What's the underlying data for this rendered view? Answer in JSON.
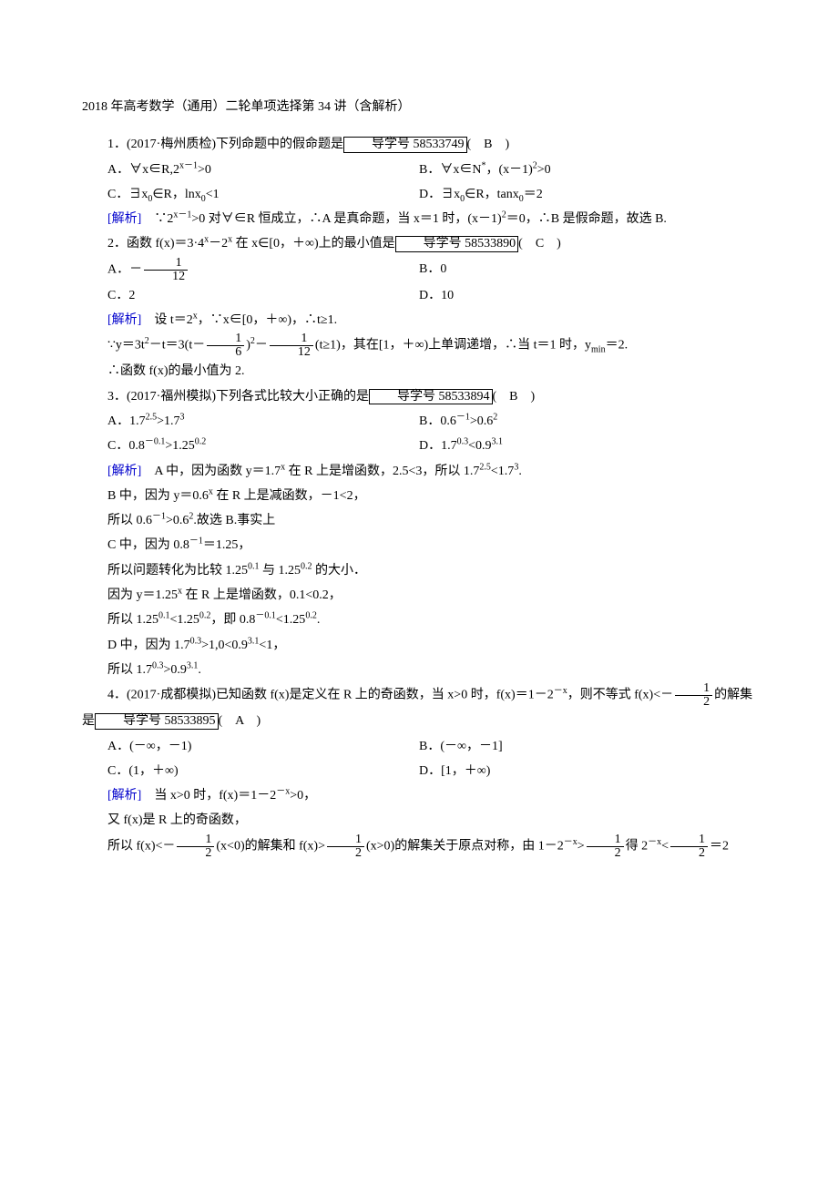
{
  "title": "2018 年高考数学（通用）二轮单项选择第 34 讲（含解析）",
  "q1": {
    "stem_a": "1．(2017·梅州质检)下列命题中的假命题是",
    "box": "导学号 58533749",
    "stem_b": "(　B　)",
    "A": "A．∀x∈R,2",
    "A_sup": "x－1",
    "A_tail": ">0",
    "B": "B．∀x∈N",
    "B_sup1": "*",
    "B_mid": "，(x－1)",
    "B_sup2": "2",
    "B_tail": ">0",
    "C_a": "C．∃x",
    "C_sub": "0",
    "C_b": "∈R，lnx",
    "C_sub2": "0",
    "C_tail": "<1",
    "D_a": "D．∃x",
    "D_sub": "0",
    "D_b": "∈R，tanx",
    "D_sub2": "0",
    "D_tail": "＝2",
    "ana_label": "[解析]",
    "ana_a": "　∵2",
    "ana_sup": "x－1",
    "ana_b": ">0 对∀∈R 恒成立，∴A 是真命题，当 x＝1 时，(x－1)",
    "ana_sup2": "2",
    "ana_c": "＝0，∴B 是假命题，故选 B."
  },
  "q2": {
    "stem_a": "2．函数 f(x)＝3·4",
    "sup1": "x",
    "stem_b": "－2",
    "sup2": "x",
    "stem_c": " 在 x∈[0，＋∞)上的最小值是",
    "box": "导学号 58533890",
    "stem_d": "(　C　)",
    "A_a": "A．－",
    "A_num": "1",
    "A_den": "12",
    "B": "B．0",
    "C": "C．2",
    "D": "D．10",
    "ana_label": "[解析]",
    "ana1_a": "　设 t＝2",
    "ana1_sup": "x",
    "ana1_b": "，∵x∈[0，＋∞)，∴t≥1.",
    "ana2_a": "∵y＝3t",
    "ana2_sup1": "2",
    "ana2_b": "－t＝3(t－",
    "ana2_num1": "1",
    "ana2_den1": "6",
    "ana2_c": ")",
    "ana2_sup2": "2",
    "ana2_d": "－",
    "ana2_num2": "1",
    "ana2_den2": "12",
    "ana2_e": "(t≥1)，其在[1，＋∞)上单调递增，∴当 t＝1 时，y",
    "ana2_sub": "min",
    "ana2_f": "＝2.",
    "ana3": "∴函数 f(x)的最小值为 2."
  },
  "q3": {
    "stem_a": "3．(2017·福州模拟)下列各式比较大小正确的是",
    "box": "导学号 58533894",
    "stem_b": "(　B　)",
    "A_a": "A．1.7",
    "A_s1": "2.5",
    "A_b": ">1.7",
    "A_s2": "3",
    "B_a": "B．0.6",
    "B_s1": "－1",
    "B_b": ">0.6",
    "B_s2": "2",
    "C_a": "C．0.8",
    "C_s1": "－0.1",
    "C_b": ">1.25",
    "C_s2": "0.2",
    "D_a": "D．1.7",
    "D_s1": "0.3",
    "D_b": "<0.9",
    "D_s2": "3.1",
    "ana_label": "[解析]",
    "l1_a": "　A 中，因为函数 y＝1.7",
    "l1_s1": "x",
    "l1_b": " 在 R 上是增函数，2.5<3，所以 1.7",
    "l1_s2": "2.5",
    "l1_c": "<1.7",
    "l1_s3": "3",
    "l1_d": ".",
    "l2_a": "B 中，因为 y＝0.6",
    "l2_s1": "x",
    "l2_b": " 在 R 上是减函数，－1<2，",
    "l3_a": "所以 0.6",
    "l3_s1": "－1",
    "l3_b": ">0.6",
    "l3_s2": "2",
    "l3_c": ".故选 B.事实上",
    "l4_a": "C 中，因为 0.8",
    "l4_s1": "－1",
    "l4_b": "＝1.25，",
    "l5_a": "所以问题转化为比较 1.25",
    "l5_s1": "0.1",
    "l5_b": " 与 1.25",
    "l5_s2": "0.2",
    "l5_c": " 的大小．",
    "l6_a": "因为 y＝1.25",
    "l6_s1": "x",
    "l6_b": " 在 R 上是增函数，0.1<0.2，",
    "l7_a": "所以 1.25",
    "l7_s1": "0.1",
    "l7_b": "<1.25",
    "l7_s2": "0.2",
    "l7_c": "，即 0.8",
    "l7_s3": "－0.1",
    "l7_d": "<1.25",
    "l7_s4": "0.2",
    "l7_e": ".",
    "l8_a": "D 中，因为 1.7",
    "l8_s1": "0.3",
    "l8_b": ">1,0<0.9",
    "l8_s2": "3.1",
    "l8_c": "<1，",
    "l9_a": "所以 1.7",
    "l9_s1": "0.3",
    "l9_b": ">0.9",
    "l9_s2": "3.1",
    "l9_c": "."
  },
  "q4": {
    "stem_a": "4．(2017·成都模拟)已知函数 f(x)是定义在 R 上的奇函数，当 x>0 时，f(x)＝1－2",
    "sup1": "－x",
    "stem_b": "，则不等式 f(x)<－",
    "num1": "1",
    "den1": "2",
    "stem_c": "的解集是",
    "box": "导学号 58533895",
    "stem_d": "(　A　)",
    "A": "A．(－∞，－1)",
    "B": "B．(－∞，－1]",
    "C": "C．(1，＋∞)",
    "D": "D．[1，＋∞)",
    "ana_label": "[解析]",
    "l1_a": "　当 x>0 时，f(x)＝1－2",
    "l1_s1": "－x",
    "l1_b": ">0，",
    "l2": "又 f(x)是 R 上的奇函数，",
    "l3_a": "所以 f(x)<－",
    "l3_n1": "1",
    "l3_d1": "2",
    "l3_b": "(x<0)的解集和 f(x)>",
    "l3_n2": "1",
    "l3_d2": "2",
    "l3_c": "(x>0)的解集关于原点对称，由 1－2",
    "l3_s1": "－x",
    "l3_d": ">",
    "l3_n3": "1",
    "l3_d3": "2",
    "l3_e": "得 2",
    "l3_s2": "－x",
    "l3_f": "<",
    "l3_n4": "1",
    "l3_d4": "2",
    "l3_g": "＝2"
  }
}
